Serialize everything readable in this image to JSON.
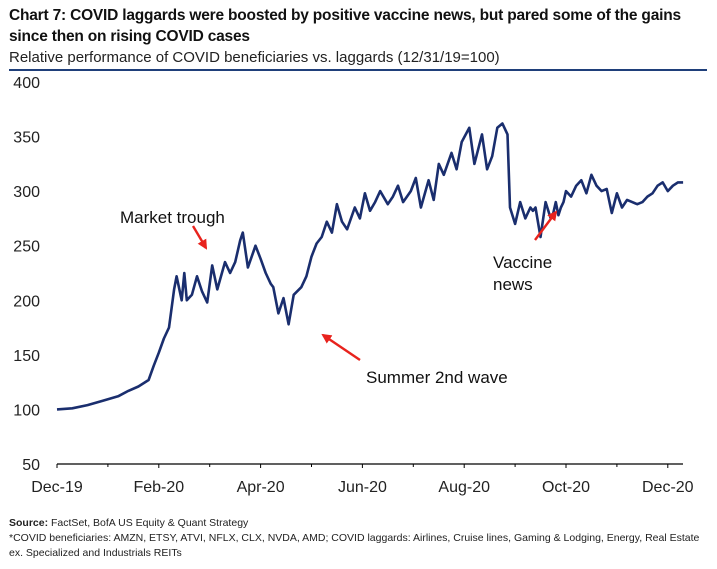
{
  "header": {
    "title": "Chart 7: COVID laggards were boosted by positive vaccine news, but pared some of the gains since then on rising COVID cases",
    "subtitle": "Relative performance of COVID beneficiaries vs. laggards (12/31/19=100)"
  },
  "footer": {
    "source_label": "Source:",
    "source_text": "FactSet, BofA US Equity & Quant Strategy",
    "note": "*COVID beneficiaries: AMZN, ETSY, ATVI, NFLX, CLX, NVDA, AMD; COVID laggards: Airlines, Cruise lines, Gaming & Lodging, Energy, Real Estate ex. Specialized and Industrials REITs"
  },
  "colors": {
    "line": "#1a2e6e",
    "arrow": "#e8231d",
    "axis": "#000000"
  },
  "chart_data": {
    "type": "line",
    "title": "Relative performance of COVID beneficiaries vs. laggards (12/31/19=100)",
    "ylim": [
      50,
      400
    ],
    "yticks": [
      "400",
      "350",
      "300",
      "250",
      "200",
      "150",
      "100",
      "50"
    ],
    "xtick_labels": [
      "Dec-19",
      "Feb-20",
      "Apr-20",
      "Jun-20",
      "Aug-20",
      "Oct-20",
      "Dec-20"
    ],
    "x_range_months": [
      0,
      12.3
    ],
    "series": [
      {
        "name": "COVID beneficiaries vs. laggards",
        "x": [
          0.0,
          0.3,
          0.6,
          0.9,
          1.2,
          1.4,
          1.6,
          1.8,
          1.9,
          2.0,
          2.1,
          2.2,
          2.3,
          2.35,
          2.45,
          2.5,
          2.55,
          2.65,
          2.75,
          2.85,
          2.95,
          3.05,
          3.15,
          3.3,
          3.4,
          3.5,
          3.6,
          3.65,
          3.75,
          3.9,
          4.0,
          4.1,
          4.2,
          4.25,
          4.35,
          4.45,
          4.55,
          4.65,
          4.8,
          4.9,
          5.0,
          5.1,
          5.2,
          5.3,
          5.4,
          5.5,
          5.6,
          5.7,
          5.85,
          5.95,
          6.05,
          6.15,
          6.25,
          6.35,
          6.5,
          6.6,
          6.7,
          6.8,
          6.95,
          7.05,
          7.15,
          7.3,
          7.4,
          7.5,
          7.6,
          7.75,
          7.85,
          7.95,
          8.1,
          8.2,
          8.35,
          8.45,
          8.55,
          8.65,
          8.75,
          8.85,
          8.9,
          9.0,
          9.1,
          9.2,
          9.3,
          9.35,
          9.4,
          9.5,
          9.6,
          9.7,
          9.75,
          9.8,
          9.85,
          9.9,
          9.95,
          10.0,
          10.1,
          10.2,
          10.3,
          10.4,
          10.5,
          10.6,
          10.7,
          10.8,
          10.9,
          11.0,
          11.1,
          11.2,
          11.3,
          11.4,
          11.5,
          11.6,
          11.7,
          11.8,
          11.9,
          12.0,
          12.1,
          12.2,
          12.3
        ],
        "values": [
          100,
          101,
          104,
          108,
          112,
          117,
          121,
          127,
          140,
          152,
          165,
          175,
          210,
          222,
          200,
          225,
          200,
          205,
          222,
          208,
          198,
          232,
          210,
          235,
          225,
          235,
          255,
          262,
          230,
          250,
          238,
          225,
          215,
          212,
          188,
          202,
          178,
          205,
          212,
          222,
          240,
          252,
          258,
          272,
          262,
          288,
          272,
          265,
          285,
          275,
          298,
          282,
          290,
          300,
          288,
          295,
          305,
          290,
          300,
          312,
          285,
          310,
          292,
          325,
          315,
          335,
          320,
          345,
          358,
          325,
          352,
          320,
          332,
          358,
          362,
          352,
          285,
          270,
          290,
          275,
          285,
          282,
          285,
          258,
          290,
          275,
          280,
          290,
          278,
          285,
          290,
          300,
          295,
          305,
          310,
          298,
          315,
          305,
          300,
          302,
          280,
          298,
          285,
          292,
          290,
          288,
          290,
          295,
          298,
          305,
          308,
          300,
          305,
          308,
          308
        ]
      }
    ],
    "annotations": [
      {
        "text": "Market trough",
        "x_month": 2.6,
        "y_value": 218
      },
      {
        "text": "Summer 2nd wave",
        "x_month": 4.9,
        "y_value": 180
      },
      {
        "text": "Vaccine\nnews",
        "x_month": 9.2,
        "y_value": 262
      }
    ]
  }
}
